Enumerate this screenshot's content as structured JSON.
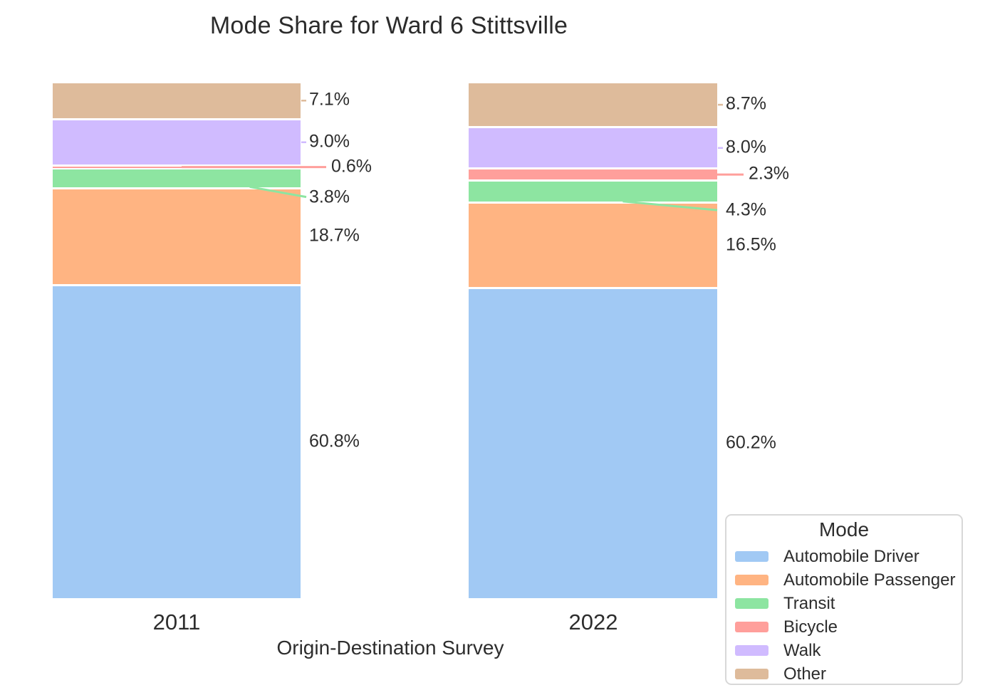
{
  "chart_data": {
    "type": "bar",
    "stacked": true,
    "orientation": "vertical",
    "title": "Mode Share for Ward 6 Stittsville",
    "xlabel": "Origin-Destination Survey",
    "ylabel": "",
    "categories": [
      "2011",
      "2022"
    ],
    "value_unit": "percent",
    "ylim": [
      0,
      100
    ],
    "grid": false,
    "series": [
      {
        "name": "Automobile Driver",
        "color": "#a1c9f4",
        "values": [
          60.8,
          60.2
        ],
        "labels": [
          "60.8%",
          "60.2%"
        ]
      },
      {
        "name": "Automobile Passenger",
        "color": "#ffb482",
        "values": [
          18.7,
          16.5
        ],
        "labels": [
          "18.7%",
          "16.5%"
        ]
      },
      {
        "name": "Transit",
        "color": "#8de5a1",
        "values": [
          3.8,
          4.3
        ],
        "labels": [
          "3.8%",
          "4.3%"
        ]
      },
      {
        "name": "Bicycle",
        "color": "#ff9f9b",
        "values": [
          0.6,
          2.3
        ],
        "labels": [
          "0.6%",
          "2.3%"
        ]
      },
      {
        "name": "Walk",
        "color": "#d0bbff",
        "values": [
          9.0,
          8.0
        ],
        "labels": [
          "9.0%",
          "8.0%"
        ]
      },
      {
        "name": "Other",
        "color": "#debb9b",
        "values": [
          7.1,
          8.7
        ],
        "labels": [
          "7.1%",
          "8.7%"
        ]
      }
    ],
    "stack_order": "series array order, bottom to top",
    "legend": {
      "title": "Mode",
      "position": "lower-right",
      "items": [
        "Automobile Driver",
        "Automobile Passenger",
        "Transit",
        "Bicycle",
        "Walk",
        "Other"
      ]
    },
    "label_layout": {
      "2011": {
        "Transit": {
          "leader": "diagonal",
          "dy": 27,
          "sx": 0.795,
          "ex": 8
        },
        "Bicycle": {
          "leader": "horizontal",
          "sx": 0.52,
          "dx": 31
        },
        "Walk": {
          "leader": "tick"
        },
        "Other": {
          "leader": "tick"
        }
      },
      "2022": {
        "Transit": {
          "leader": "diagonal",
          "dy": 27,
          "sx": 0.62,
          "ex": 0
        },
        "Bicycle": {
          "leader": "horizontal",
          "sx": 1.0,
          "dx": 32
        },
        "Walk": {
          "leader": "tick"
        },
        "Other": {
          "leader": "tick"
        }
      }
    },
    "colors": {
      "text": "#2d2d2d",
      "background": "#ffffff",
      "legend_border": "#d8d8d8"
    }
  }
}
